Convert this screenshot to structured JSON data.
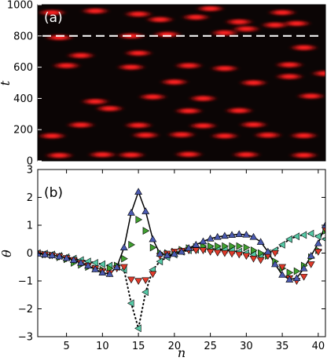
{
  "chart_data": [
    {
      "type": "heatmap",
      "panel_label": "(a)",
      "xlabel": "",
      "ylabel": "t",
      "ylim": [
        0,
        1000
      ],
      "yticks": [
        "0",
        "200",
        "400",
        "600",
        "800",
        "1000"
      ],
      "colormap": "black-red",
      "marker_line": {
        "y": 800,
        "style": "dashed",
        "color": "#ffffff"
      },
      "x_range": [
        1,
        41
      ],
      "hot_spots": [
        {
          "n": 4,
          "t": 35
        },
        {
          "n": 10,
          "t": 40
        },
        {
          "n": 14,
          "t": 38
        },
        {
          "n": 22,
          "t": 42
        },
        {
          "n": 30,
          "t": 40
        },
        {
          "n": 38,
          "t": 36
        },
        {
          "n": 3,
          "t": 160
        },
        {
          "n": 16,
          "t": 165
        },
        {
          "n": 21,
          "t": 168
        },
        {
          "n": 27,
          "t": 160
        },
        {
          "n": 33,
          "t": 165
        },
        {
          "n": 38,
          "t": 162
        },
        {
          "n": 7,
          "t": 230
        },
        {
          "n": 15,
          "t": 228
        },
        {
          "n": 24,
          "t": 225
        },
        {
          "n": 31,
          "t": 232
        },
        {
          "n": 11,
          "t": 335
        },
        {
          "n": 22,
          "t": 320
        },
        {
          "n": 29,
          "t": 322
        },
        {
          "n": 9,
          "t": 380
        },
        {
          "n": 17,
          "t": 410
        },
        {
          "n": 24,
          "t": 400
        },
        {
          "n": 39,
          "t": 415
        },
        {
          "n": 20,
          "t": 505
        },
        {
          "n": 31,
          "t": 500
        },
        {
          "n": 36,
          "t": 540
        },
        {
          "n": 41,
          "t": 560
        },
        {
          "n": 5,
          "t": 610
        },
        {
          "n": 14,
          "t": 600
        },
        {
          "n": 22,
          "t": 610
        },
        {
          "n": 27,
          "t": 592
        },
        {
          "n": 36,
          "t": 615
        },
        {
          "n": 7,
          "t": 675
        },
        {
          "n": 15,
          "t": 690
        },
        {
          "n": 38,
          "t": 725
        },
        {
          "n": 4,
          "t": 790
        },
        {
          "n": 14,
          "t": 800
        },
        {
          "n": 19,
          "t": 810
        },
        {
          "n": 27,
          "t": 820
        },
        {
          "n": 30,
          "t": 845
        },
        {
          "n": 34,
          "t": 870
        },
        {
          "n": 18,
          "t": 905
        },
        {
          "n": 23,
          "t": 920
        },
        {
          "n": 29,
          "t": 890
        },
        {
          "n": 37,
          "t": 880
        },
        {
          "n": 3,
          "t": 950
        },
        {
          "n": 9,
          "t": 960
        },
        {
          "n": 15,
          "t": 940
        },
        {
          "n": 25,
          "t": 975
        },
        {
          "n": 35,
          "t": 950
        }
      ]
    },
    {
      "type": "scatter",
      "panel_label": "(b)",
      "xlabel": "n",
      "ylabel": "θ",
      "xlim": [
        1,
        41
      ],
      "ylim": [
        -3,
        3
      ],
      "xticks": [
        "5",
        "10",
        "15",
        "20",
        "25",
        "30",
        "35",
        "40"
      ],
      "yticks": [
        "−3",
        "−2",
        "−1",
        "0",
        "1",
        "2",
        "3"
      ],
      "x": [
        1,
        2,
        3,
        4,
        5,
        6,
        7,
        8,
        9,
        10,
        11,
        12,
        13,
        14,
        15,
        16,
        17,
        18,
        19,
        20,
        21,
        22,
        23,
        24,
        25,
        26,
        27,
        28,
        29,
        30,
        31,
        32,
        33,
        34,
        35,
        36,
        37,
        38,
        39,
        40,
        41
      ],
      "series": [
        {
          "marker": "triangle-up",
          "color": "#4a5ab0",
          "line": "solid",
          "values": [
            -0.02,
            -0.05,
            -0.08,
            -0.12,
            -0.18,
            -0.25,
            -0.35,
            -0.45,
            -0.58,
            -0.7,
            -0.75,
            -0.5,
            0.2,
            1.45,
            2.2,
            1.5,
            0.5,
            -0.02,
            -0.08,
            -0.03,
            0.05,
            0.18,
            0.3,
            0.42,
            0.52,
            0.58,
            0.62,
            0.65,
            0.68,
            0.66,
            0.58,
            0.4,
            0.05,
            -0.4,
            -0.78,
            -0.95,
            -0.9,
            -0.55,
            -0.1,
            0.35,
            1.0
          ]
        },
        {
          "marker": "triangle-down",
          "color": "#e03a2a",
          "line": "none",
          "values": [
            -0.02,
            -0.05,
            -0.08,
            -0.12,
            -0.18,
            -0.25,
            -0.35,
            -0.45,
            -0.55,
            -0.65,
            -0.72,
            -0.55,
            -0.5,
            -0.95,
            -1.0,
            -0.97,
            -0.75,
            -0.1,
            -0.02,
            0.05,
            0.08,
            0.1,
            0.1,
            0.1,
            0.05,
            0.02,
            0.0,
            -0.02,
            -0.05,
            -0.1,
            -0.2,
            -0.25,
            -0.1,
            0.0,
            -0.5,
            -0.9,
            -1.0,
            -0.85,
            -0.4,
            0.05,
            0.85
          ]
        },
        {
          "marker": "triangle-right",
          "color": "#3fa02f",
          "line": "none",
          "values": [
            -0.05,
            -0.05,
            -0.08,
            -0.15,
            -0.22,
            -0.35,
            -0.42,
            -0.5,
            -0.55,
            -0.6,
            -0.55,
            -0.45,
            -0.2,
            0.3,
            1.2,
            0.8,
            0.2,
            0.0,
            0.0,
            0.05,
            0.12,
            0.18,
            0.22,
            0.25,
            0.25,
            0.25,
            0.25,
            0.25,
            0.25,
            0.2,
            0.1,
            0.0,
            -0.1,
            -0.3,
            -0.55,
            -0.7,
            -0.65,
            -0.45,
            -0.15,
            0.1,
            0.8
          ]
        },
        {
          "marker": "triangle-left",
          "color": "#56c9a6",
          "line": "dotted",
          "values": [
            0.0,
            -0.02,
            -0.05,
            -0.1,
            -0.15,
            -0.2,
            -0.25,
            -0.3,
            -0.35,
            -0.4,
            -0.45,
            -0.5,
            -0.6,
            -1.8,
            -2.7,
            -1.4,
            -0.6,
            -0.3,
            -0.15,
            -0.05,
            0.05,
            0.1,
            0.12,
            0.15,
            0.15,
            0.15,
            0.12,
            0.1,
            0.05,
            0.0,
            -0.05,
            -0.1,
            0.0,
            0.1,
            0.3,
            0.5,
            0.6,
            0.65,
            0.7,
            0.6,
            0.5
          ]
        }
      ]
    }
  ]
}
